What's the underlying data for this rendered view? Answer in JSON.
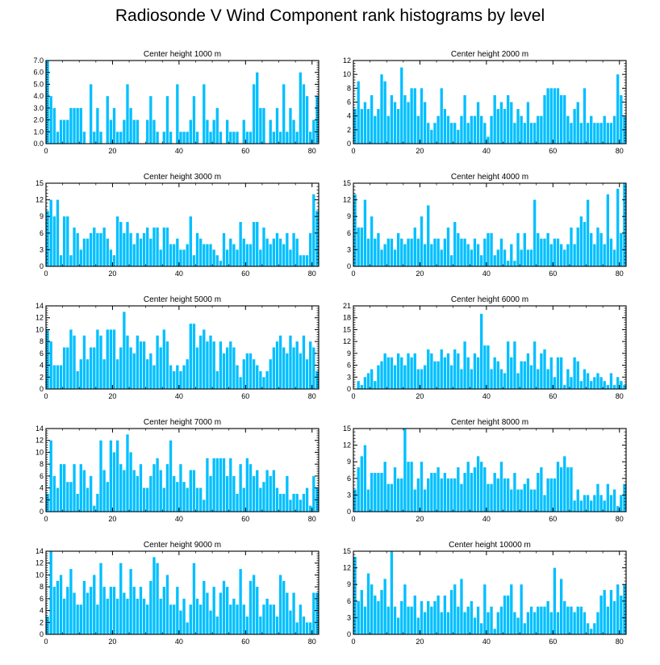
{
  "title": "Radiosonde V Wind Component rank histograms by level",
  "bar_color": "#00bfff",
  "chart_data": [
    {
      "type": "bar",
      "title": "Center height 1000 m",
      "xlabel": "",
      "ylabel": "",
      "xlim": [
        0,
        82
      ],
      "ylim": [
        0,
        7
      ],
      "yticks": [
        0,
        1,
        2,
        3,
        4,
        5,
        6,
        7
      ],
      "ytick_labels": [
        "0.0",
        "1.0",
        "2.0",
        "3.0",
        "4.0",
        "5.0",
        "6.0",
        "7.0"
      ],
      "xticks": [
        0,
        20,
        40,
        60,
        80
      ],
      "xtick_labels": [
        "0",
        "20",
        "40",
        "60",
        "80"
      ],
      "values": [
        7,
        4,
        3,
        1,
        2,
        2,
        2,
        3,
        3,
        3,
        3,
        1,
        0,
        5,
        1,
        3,
        1,
        0,
        4,
        2,
        3,
        1,
        1,
        2,
        5,
        3,
        2,
        2,
        0,
        0,
        2,
        4,
        2,
        1,
        0,
        1,
        4,
        1,
        0,
        5,
        1,
        1,
        1,
        2,
        4,
        1,
        0,
        5,
        2,
        1,
        2,
        3,
        1,
        0,
        2,
        1,
        1,
        1,
        0,
        2,
        1,
        1,
        5,
        6,
        3,
        3,
        0,
        2,
        1,
        3,
        1,
        5,
        1,
        3,
        2,
        1,
        6,
        5,
        4,
        1,
        2,
        4
      ]
    },
    {
      "type": "bar",
      "title": "Center height 2000 m",
      "xlabel": "",
      "ylabel": "",
      "xlim": [
        0,
        82
      ],
      "ylim": [
        0,
        12
      ],
      "yticks": [
        0,
        2,
        4,
        6,
        8,
        10,
        12
      ],
      "ytick_labels": [
        "0",
        "2",
        "4",
        "6",
        "8",
        "10",
        "12"
      ],
      "xticks": [
        0,
        20,
        40,
        60,
        80
      ],
      "xtick_labels": [
        "0",
        "20",
        "40",
        "60",
        "80"
      ],
      "values": [
        5,
        9,
        5,
        6,
        5,
        7,
        4,
        5,
        10,
        9,
        4,
        7,
        6,
        5,
        11,
        7,
        6,
        8,
        8,
        4,
        8,
        6,
        3,
        2,
        3,
        4,
        8,
        5,
        4,
        3,
        3,
        2,
        4,
        7,
        3,
        4,
        4,
        6,
        4,
        3,
        1,
        4,
        7,
        5,
        6,
        5,
        7,
        6,
        3,
        5,
        4,
        3,
        6,
        3,
        3,
        4,
        4,
        7,
        8,
        8,
        8,
        8,
        7,
        7,
        4,
        3,
        5,
        6,
        3,
        8,
        3,
        4,
        3,
        3,
        3,
        4,
        3,
        3,
        4,
        10,
        7,
        4
      ]
    },
    {
      "type": "bar",
      "title": "Center height 3000 m",
      "xlabel": "",
      "ylabel": "",
      "xlim": [
        0,
        82
      ],
      "ylim": [
        0,
        15
      ],
      "yticks": [
        0,
        3,
        6,
        9,
        12,
        15
      ],
      "ytick_labels": [
        "0",
        "3",
        "6",
        "9",
        "12",
        "15"
      ],
      "xticks": [
        0,
        20,
        40,
        60,
        80
      ],
      "xtick_labels": [
        "0",
        "20",
        "40",
        "60",
        "80"
      ],
      "values": [
        10,
        12,
        9,
        12,
        2,
        9,
        9,
        2,
        7,
        6,
        3,
        5,
        5,
        6,
        7,
        6,
        6,
        7,
        5,
        3,
        2,
        9,
        8,
        6,
        8,
        6,
        4,
        6,
        5,
        6,
        7,
        5,
        7,
        7,
        3,
        7,
        7,
        4,
        4,
        5,
        3,
        3,
        4,
        9,
        2,
        6,
        5,
        4,
        4,
        4,
        3,
        2,
        1,
        6,
        3,
        5,
        4,
        3,
        8,
        5,
        4,
        4,
        8,
        8,
        3,
        7,
        5,
        4,
        5,
        6,
        5,
        4,
        6,
        3,
        6,
        5,
        2,
        2,
        2,
        6,
        13,
        10
      ]
    },
    {
      "type": "bar",
      "title": "Center height 4000 m",
      "xlabel": "",
      "ylabel": "",
      "xlim": [
        0,
        82
      ],
      "ylim": [
        0,
        15
      ],
      "yticks": [
        0,
        3,
        6,
        9,
        12,
        15
      ],
      "ytick_labels": [
        "0",
        "3",
        "6",
        "9",
        "12",
        "15"
      ],
      "xticks": [
        0,
        20,
        40,
        60,
        80
      ],
      "xtick_labels": [
        "0",
        "20",
        "40",
        "60",
        "80"
      ],
      "values": [
        13,
        7,
        7,
        12,
        5,
        9,
        5,
        6,
        3,
        4,
        5,
        5,
        3,
        6,
        5,
        4,
        5,
        5,
        7,
        5,
        9,
        4,
        11,
        4,
        5,
        5,
        3,
        5,
        7,
        2,
        8,
        6,
        5,
        5,
        4,
        3,
        5,
        4,
        2,
        5,
        6,
        6,
        2,
        3,
        5,
        3,
        1,
        4,
        1,
        6,
        3,
        6,
        3,
        3,
        12,
        6,
        5,
        5,
        6,
        4,
        5,
        5,
        4,
        3,
        4,
        7,
        4,
        7,
        9,
        8,
        12,
        6,
        4,
        7,
        6,
        4,
        13,
        5,
        3,
        14,
        6,
        15
      ]
    },
    {
      "type": "bar",
      "title": "Center height 5000 m",
      "xlabel": "",
      "ylabel": "",
      "xlim": [
        0,
        82
      ],
      "ylim": [
        0,
        14
      ],
      "yticks": [
        0,
        2,
        4,
        6,
        8,
        10,
        12,
        14
      ],
      "ytick_labels": [
        "0",
        "2",
        "4",
        "6",
        "8",
        "10",
        "12",
        "14"
      ],
      "xticks": [
        0,
        20,
        40,
        60,
        80
      ],
      "xtick_labels": [
        "0",
        "20",
        "40",
        "60",
        "80"
      ],
      "values": [
        10,
        8,
        4,
        4,
        4,
        7,
        7,
        10,
        9,
        3,
        5,
        9,
        5,
        7,
        7,
        10,
        9,
        5,
        10,
        10,
        10,
        5,
        7,
        13,
        9,
        7,
        6,
        9,
        8,
        8,
        5,
        6,
        4,
        9,
        7,
        10,
        8,
        4,
        3,
        4,
        3,
        4,
        5,
        11,
        11,
        7,
        9,
        10,
        8,
        9,
        8,
        3,
        8,
        6,
        7,
        8,
        7,
        4,
        2,
        5,
        6,
        6,
        5,
        4,
        3,
        2,
        3,
        5,
        7,
        8,
        9,
        7,
        6,
        9,
        7,
        8,
        6,
        9,
        5,
        8,
        7,
        3
      ]
    },
    {
      "type": "bar",
      "title": "Center height 6000 m",
      "xlabel": "",
      "ylabel": "",
      "xlim": [
        0,
        82
      ],
      "ylim": [
        0,
        21
      ],
      "yticks": [
        0,
        3,
        6,
        9,
        12,
        15,
        18,
        21
      ],
      "ytick_labels": [
        "0",
        "3",
        "6",
        "9",
        "12",
        "15",
        "18",
        "21"
      ],
      "xticks": [
        0,
        20,
        40,
        60,
        80
      ],
      "xtick_labels": [
        "0",
        "20",
        "40",
        "60",
        "80"
      ],
      "values": [
        0,
        2,
        1,
        3,
        4,
        5,
        2,
        6,
        7,
        9,
        8,
        8,
        6,
        9,
        8,
        6,
        9,
        8,
        9,
        5,
        5,
        6,
        10,
        9,
        7,
        7,
        10,
        8,
        9,
        6,
        10,
        9,
        5,
        12,
        8,
        5,
        9,
        8,
        19,
        11,
        11,
        5,
        8,
        7,
        5,
        4,
        12,
        8,
        12,
        4,
        7,
        7,
        9,
        6,
        12,
        5,
        9,
        10,
        5,
        8,
        3,
        8,
        8,
        1,
        5,
        3,
        8,
        7,
        2,
        5,
        4,
        2,
        3,
        4,
        3,
        2,
        1,
        4,
        1,
        3,
        2,
        1
      ]
    },
    {
      "type": "bar",
      "title": "Center height 7000 m",
      "xlabel": "",
      "ylabel": "",
      "xlim": [
        0,
        82
      ],
      "ylim": [
        0,
        14
      ],
      "yticks": [
        0,
        2,
        4,
        6,
        8,
        10,
        12,
        14
      ],
      "ytick_labels": [
        "0",
        "2",
        "4",
        "6",
        "8",
        "10",
        "12",
        "14"
      ],
      "xticks": [
        0,
        20,
        40,
        60,
        80
      ],
      "xtick_labels": [
        "0",
        "20",
        "40",
        "60",
        "80"
      ],
      "values": [
        3,
        12,
        6,
        4,
        8,
        8,
        5,
        5,
        8,
        3,
        8,
        7,
        4,
        6,
        1,
        3,
        12,
        7,
        5,
        12,
        10,
        12,
        8,
        7,
        13,
        10,
        7,
        6,
        8,
        4,
        4,
        6,
        8,
        9,
        7,
        4,
        8,
        12,
        6,
        5,
        8,
        5,
        4,
        7,
        7,
        4,
        4,
        2,
        9,
        6,
        9,
        9,
        9,
        9,
        6,
        9,
        6,
        3,
        8,
        4,
        9,
        8,
        6,
        7,
        4,
        5,
        7,
        6,
        7,
        4,
        3,
        3,
        6,
        2,
        3,
        3,
        2,
        3,
        4,
        1,
        6,
        4
      ]
    },
    {
      "type": "bar",
      "title": "Center height 8000 m",
      "xlabel": "",
      "ylabel": "",
      "xlim": [
        0,
        82
      ],
      "ylim": [
        0,
        15
      ],
      "yticks": [
        0,
        3,
        6,
        9,
        12,
        15
      ],
      "ytick_labels": [
        "0",
        "3",
        "6",
        "9",
        "12",
        "15"
      ],
      "xticks": [
        0,
        20,
        40,
        60,
        80
      ],
      "xtick_labels": [
        "0",
        "20",
        "40",
        "60",
        "80"
      ],
      "values": [
        4,
        8,
        10,
        12,
        4,
        7,
        7,
        7,
        7,
        9,
        5,
        5,
        8,
        6,
        6,
        15,
        9,
        9,
        4,
        6,
        9,
        4,
        6,
        7,
        7,
        8,
        6,
        7,
        6,
        6,
        6,
        8,
        5,
        7,
        9,
        7,
        8,
        10,
        9,
        8,
        5,
        5,
        7,
        6,
        9,
        6,
        6,
        4,
        7,
        4,
        4,
        5,
        6,
        4,
        4,
        7,
        8,
        3,
        6,
        6,
        6,
        9,
        8,
        10,
        8,
        8,
        2,
        4,
        2,
        3,
        3,
        2,
        3,
        5,
        3,
        2,
        5,
        3,
        4,
        1,
        3,
        5
      ]
    },
    {
      "type": "bar",
      "title": "Center height 9000 m",
      "xlabel": "",
      "ylabel": "",
      "xlim": [
        0,
        82
      ],
      "ylim": [
        0,
        14
      ],
      "yticks": [
        0,
        2,
        4,
        6,
        8,
        10,
        12,
        14
      ],
      "ytick_labels": [
        "0",
        "2",
        "4",
        "6",
        "8",
        "10",
        "12",
        "14"
      ],
      "xticks": [
        0,
        20,
        40,
        60,
        80
      ],
      "xtick_labels": [
        "0",
        "20",
        "40",
        "60",
        "80"
      ],
      "values": [
        3,
        14,
        8,
        9,
        10,
        6,
        8,
        11,
        7,
        5,
        5,
        9,
        7,
        8,
        10,
        5,
        12,
        8,
        6,
        8,
        8,
        6,
        12,
        7,
        6,
        11,
        8,
        6,
        8,
        6,
        5,
        9,
        13,
        12,
        6,
        8,
        10,
        5,
        5,
        8,
        4,
        6,
        2,
        5,
        12,
        6,
        5,
        9,
        7,
        4,
        8,
        3,
        7,
        9,
        8,
        5,
        6,
        5,
        11,
        5,
        3,
        9,
        10,
        8,
        3,
        5,
        6,
        5,
        5,
        3,
        10,
        9,
        7,
        4,
        7,
        2,
        5,
        3,
        2,
        2,
        7,
        7
      ]
    },
    {
      "type": "bar",
      "title": "Center height 10000 m",
      "xlabel": "",
      "ylabel": "",
      "xlim": [
        0,
        82
      ],
      "ylim": [
        0,
        15
      ],
      "yticks": [
        0,
        3,
        6,
        9,
        12,
        15
      ],
      "ytick_labels": [
        "0",
        "3",
        "6",
        "9",
        "12",
        "15"
      ],
      "xticks": [
        0,
        20,
        40,
        60,
        80
      ],
      "xtick_labels": [
        "0",
        "20",
        "40",
        "60",
        "80"
      ],
      "values": [
        14,
        6,
        8,
        5,
        11,
        9,
        7,
        6,
        8,
        10,
        5,
        15,
        5,
        3,
        6,
        9,
        5,
        5,
        7,
        3,
        6,
        4,
        6,
        5,
        6,
        7,
        4,
        7,
        4,
        8,
        9,
        5,
        10,
        4,
        5,
        6,
        3,
        5,
        2,
        9,
        4,
        5,
        1,
        4,
        5,
        7,
        7,
        9,
        4,
        3,
        9,
        2,
        4,
        5,
        4,
        5,
        5,
        5,
        6,
        4,
        12,
        4,
        10,
        6,
        5,
        5,
        4,
        5,
        5,
        4,
        2,
        1,
        2,
        4,
        7,
        8,
        5,
        8,
        6,
        9,
        7,
        9
      ]
    }
  ]
}
